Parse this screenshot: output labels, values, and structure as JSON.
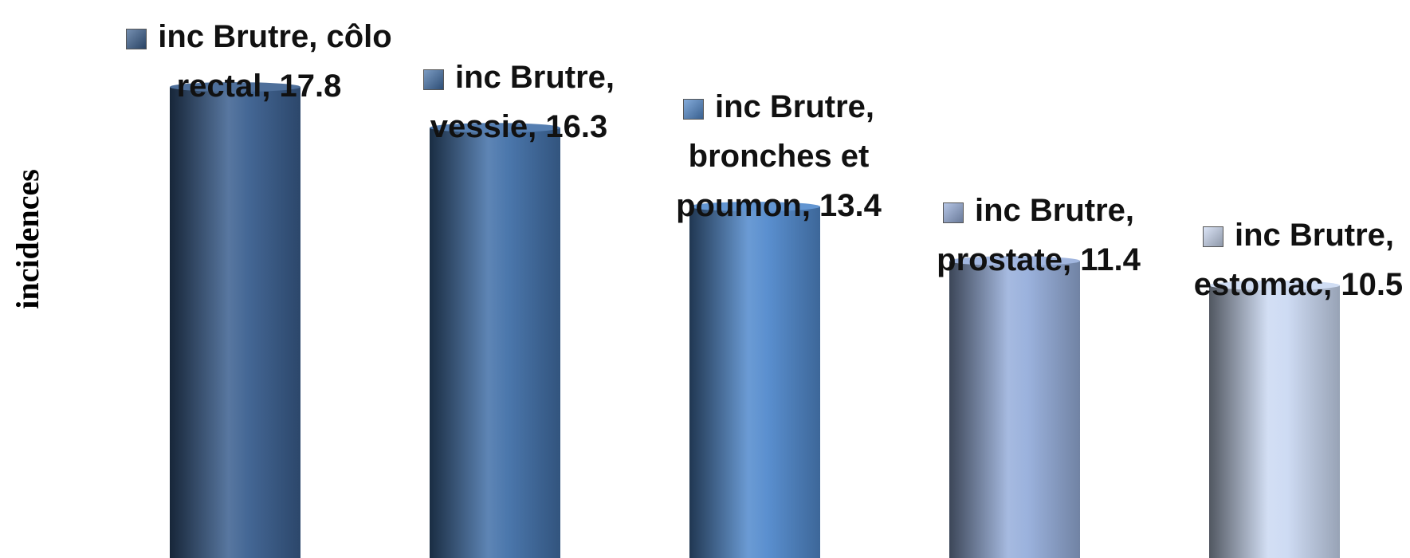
{
  "chart_data": {
    "type": "bar",
    "y_label": "incidences",
    "series_name": "inc Brutre",
    "categories": [
      "côlo rectal",
      "vessie",
      "bronches et poumon",
      "prostate",
      "estomac"
    ],
    "values": [
      17.8,
      16.3,
      13.4,
      11.4,
      10.5
    ],
    "value_labels": [
      "inc Brutre, côlo rectal, 17.8",
      "inc Brutre, vessie, 16.3",
      "inc Brutre, bronches et poumon, 13.4",
      "inc Brutre, prostate, 11.4",
      "inc Brutre, estomac, 10.5"
    ],
    "colors": [
      "#3a5f8f",
      "#4270a8",
      "#5189cc",
      "#96aedb",
      "#cbd9f2"
    ],
    "ylim": [
      0,
      21
    ]
  }
}
